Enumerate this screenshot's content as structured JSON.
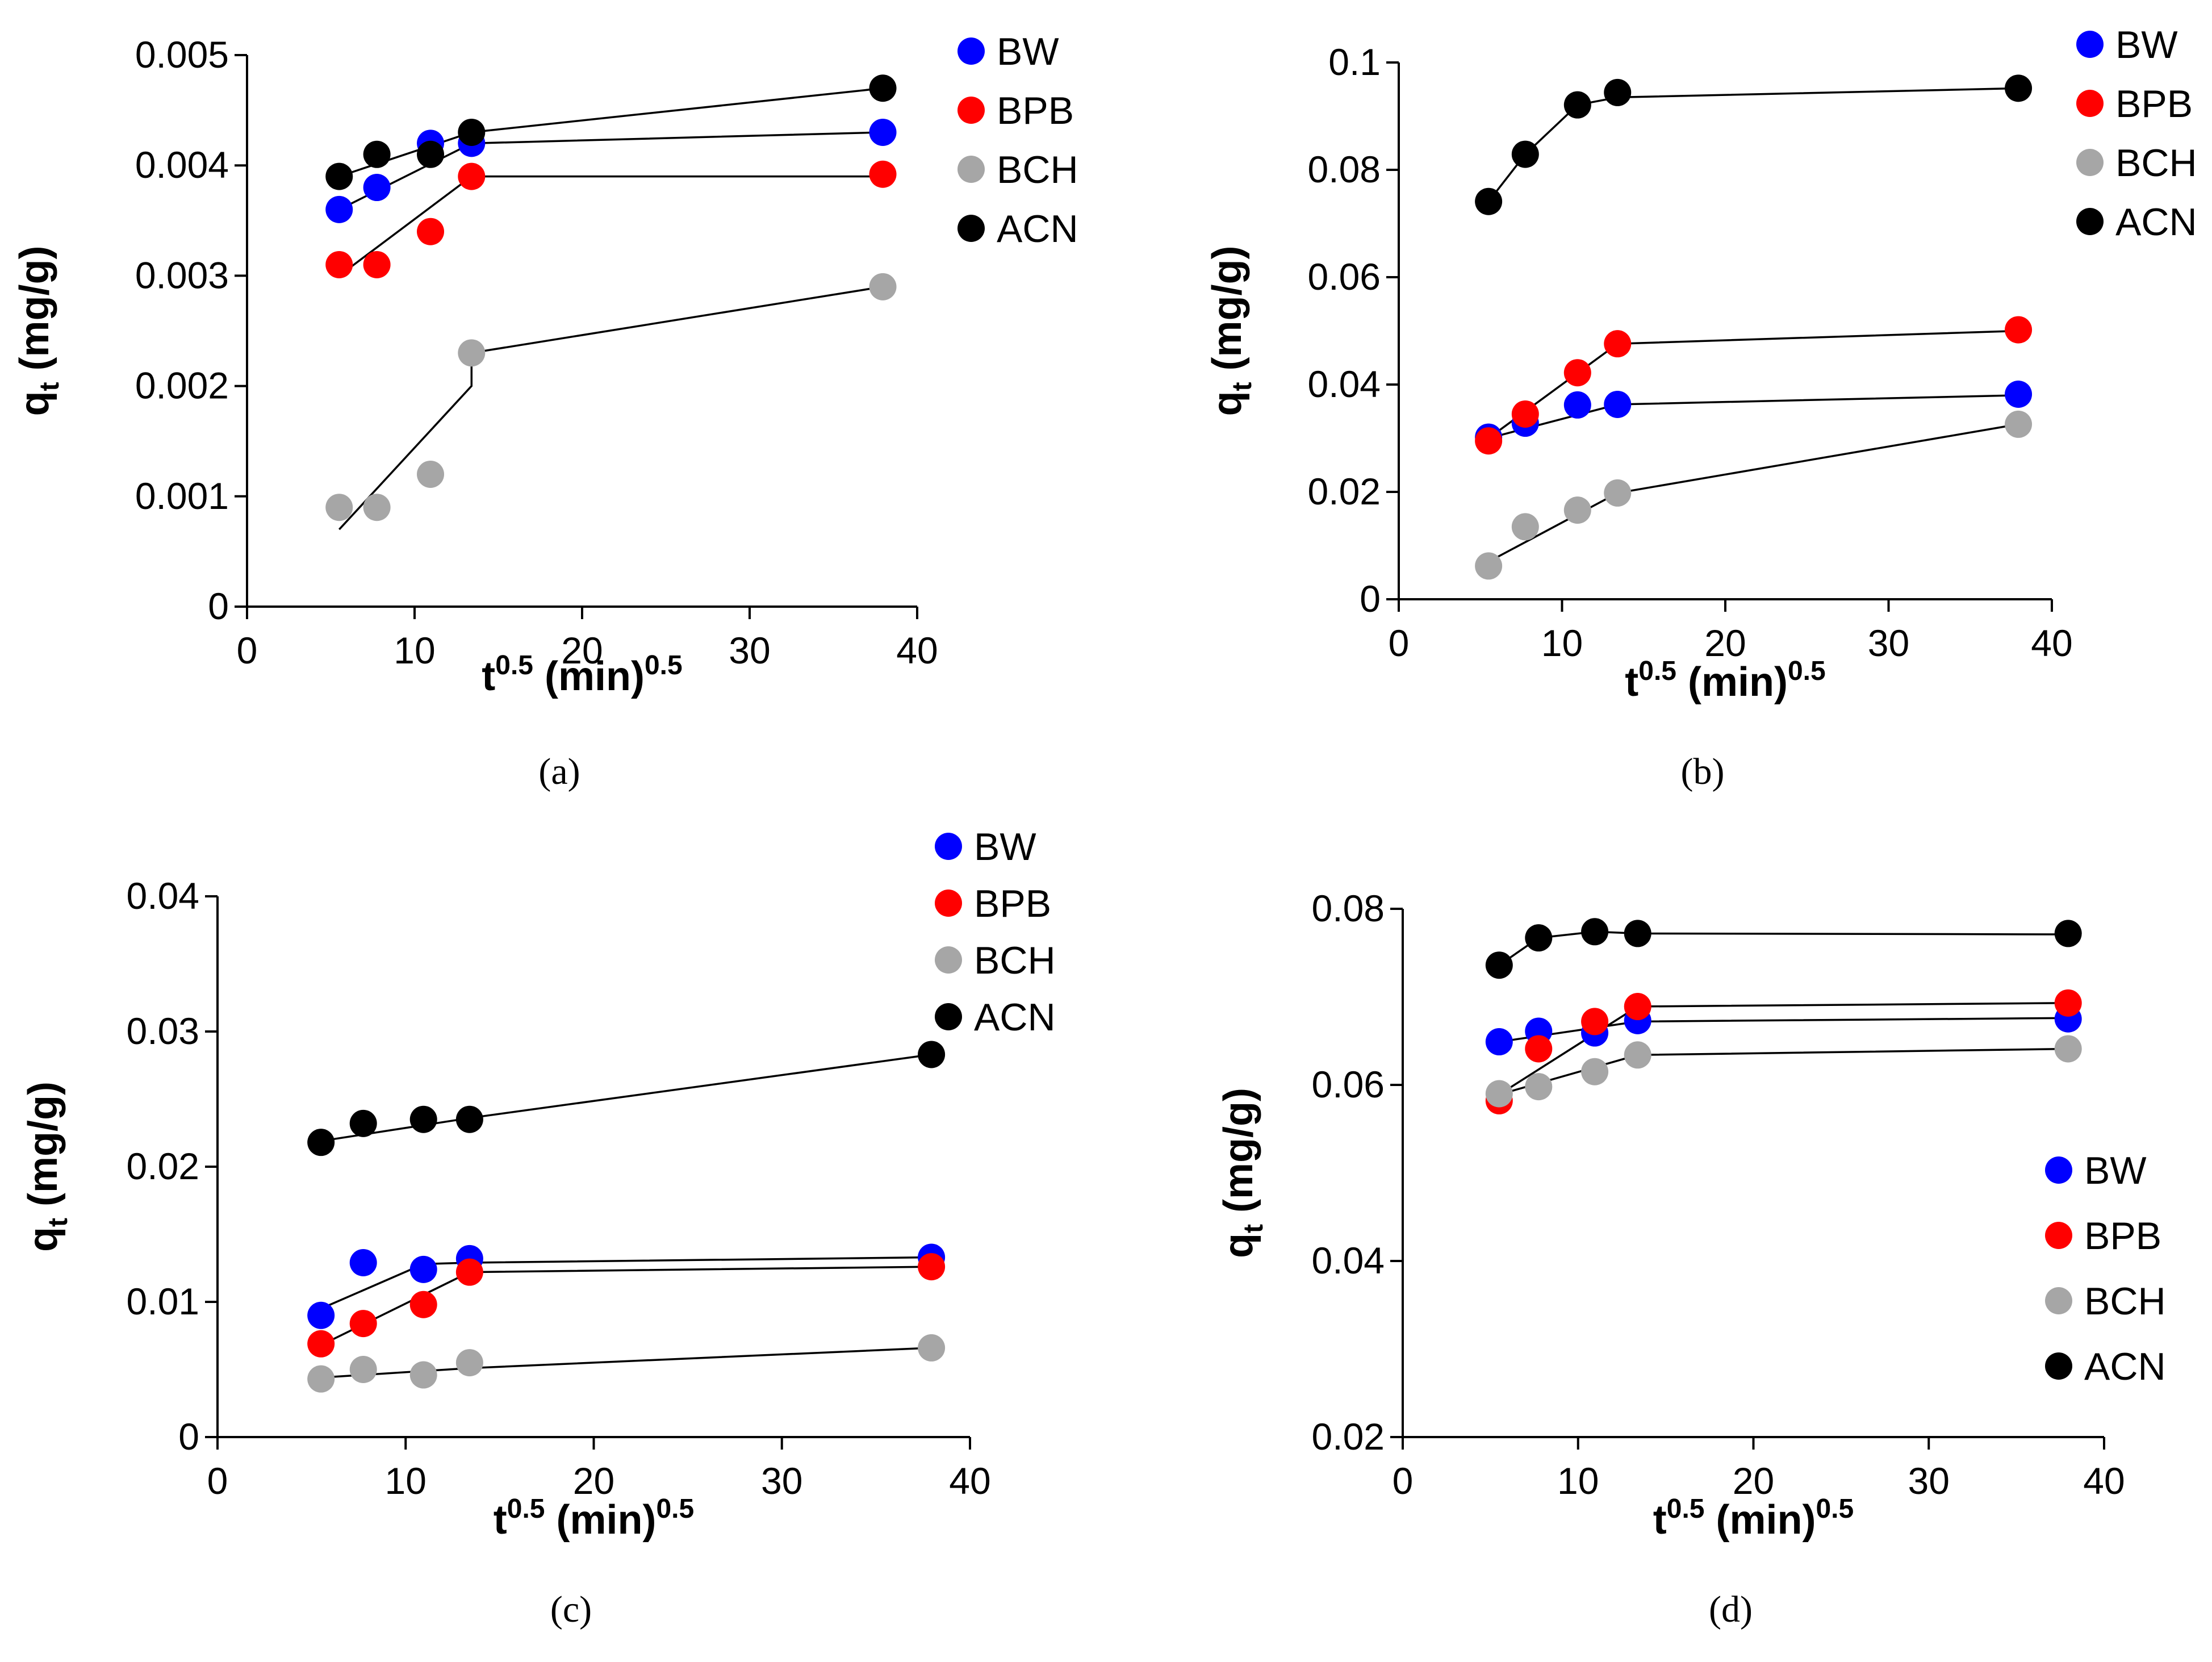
{
  "colors": {
    "BW": "#0000ff",
    "BPB": "#ff0000",
    "BCH": "#a6a6a6",
    "ACN": "#000000",
    "fit_line": "#000000"
  },
  "chart_data": [
    {
      "id": "a",
      "type": "scatter",
      "panel_label": "(a)",
      "xlabel": {
        "base": "t",
        "sup1": "0.5",
        "mid": " (min)",
        "sup2": "0.5"
      },
      "ylabel": {
        "base": "q",
        "sub": "t",
        "rest": " (mg/g)"
      },
      "xlim": [
        0,
        40
      ],
      "xticks": [
        0,
        10,
        20,
        30,
        40
      ],
      "xtick_labels": [
        "0",
        "10",
        "20",
        "30",
        "40"
      ],
      "ylim": [
        0,
        0.005
      ],
      "yticks": [
        0,
        0.001,
        0.002,
        0.003,
        0.004,
        0.005
      ],
      "ytick_labels": [
        "0",
        "0.001",
        "0.002",
        "0.003",
        "0.004",
        "0.005"
      ],
      "legend_position": "top-right",
      "x": [
        5.5,
        7.75,
        10.95,
        13.4,
        37.95
      ],
      "series": [
        {
          "name": "BW",
          "values": [
            0.0036,
            0.0038,
            0.0042,
            0.0042,
            0.0043
          ],
          "fit": [
            [
              5.5,
              0.0036
            ],
            [
              13.4,
              0.0042
            ],
            [
              37.95,
              0.0043
            ]
          ]
        },
        {
          "name": "BPB",
          "values": [
            0.0031,
            0.0031,
            0.0034,
            0.0039,
            0.00392
          ],
          "fit": [
            [
              5.5,
              0.003
            ],
            [
              13.4,
              0.0039
            ],
            [
              37.95,
              0.0039
            ]
          ]
        },
        {
          "name": "BCH",
          "values": [
            0.0009,
            0.0009,
            0.0012,
            0.0023,
            0.0029
          ],
          "fit": [
            [
              5.5,
              0.0007
            ],
            [
              13.4,
              0.002
            ],
            [
              13.4,
              0.0023
            ],
            [
              37.95,
              0.0029
            ]
          ]
        },
        {
          "name": "ACN",
          "values": [
            0.0039,
            0.0041,
            0.0041,
            0.0043,
            0.0047
          ],
          "fit": [
            [
              5.5,
              0.0039
            ],
            [
              13.4,
              0.0043
            ],
            [
              37.95,
              0.0047
            ]
          ]
        }
      ]
    },
    {
      "id": "b",
      "type": "scatter",
      "panel_label": "(b)",
      "xlabel": {
        "base": "t",
        "sup1": "0.5",
        "mid": " (min)",
        "sup2": "0.5"
      },
      "ylabel": {
        "base": "q",
        "sub": "t",
        "rest": " (mg/g)"
      },
      "xlim": [
        0,
        40
      ],
      "xticks": [
        0,
        10,
        20,
        30,
        40
      ],
      "xtick_labels": [
        "0",
        "10",
        "20",
        "30",
        "40"
      ],
      "ylim": [
        0,
        0.1
      ],
      "yticks": [
        0,
        0.02,
        0.04,
        0.06,
        0.08,
        0.1
      ],
      "ytick_labels": [
        "0",
        "0.02",
        "0.04",
        "0.06",
        "0.08",
        "0.1"
      ],
      "legend_position": "top-right",
      "x": [
        5.5,
        7.75,
        10.95,
        13.4,
        37.95
      ],
      "series": [
        {
          "name": "BW",
          "values": [
            0.0302,
            0.0328,
            0.0362,
            0.0363,
            0.0382
          ],
          "fit": [
            [
              5.5,
              0.03
            ],
            [
              13.4,
              0.0363
            ],
            [
              37.95,
              0.038
            ]
          ]
        },
        {
          "name": "BPB",
          "values": [
            0.0295,
            0.0345,
            0.0422,
            0.0476,
            0.0502
          ],
          "fit": [
            [
              5.5,
              0.03
            ],
            [
              13.4,
              0.0476
            ],
            [
              37.95,
              0.05
            ]
          ]
        },
        {
          "name": "BCH",
          "values": [
            0.0062,
            0.0135,
            0.0166,
            0.0198,
            0.0326
          ],
          "fit": [
            [
              5.5,
              0.007
            ],
            [
              13.4,
              0.0198
            ],
            [
              37.95,
              0.0326
            ]
          ]
        },
        {
          "name": "ACN",
          "values": [
            0.0741,
            0.0829,
            0.0921,
            0.0944,
            0.0952
          ],
          "fit": [
            [
              5.5,
              0.0741
            ],
            [
              7.75,
              0.0829
            ],
            [
              10.95,
              0.0921
            ],
            [
              13.4,
              0.0935
            ],
            [
              37.95,
              0.0952
            ]
          ]
        }
      ]
    },
    {
      "id": "c",
      "type": "scatter",
      "panel_label": "(c)",
      "xlabel": {
        "base": "t",
        "sup1": "0.5",
        "mid": " (min)",
        "sup2": "0.5"
      },
      "ylabel": {
        "base": "q",
        "sub": "t",
        "rest": " (mg/g)"
      },
      "xlim": [
        0,
        40
      ],
      "xticks": [
        0,
        10,
        20,
        30,
        40
      ],
      "xtick_labels": [
        "0",
        "10",
        "20",
        "30",
        "40"
      ],
      "ylim": [
        0,
        0.04
      ],
      "yticks": [
        0,
        0.01,
        0.02,
        0.03,
        0.04
      ],
      "ytick_labels": [
        "0",
        "0.01",
        "0.02",
        "0.03",
        "0.04"
      ],
      "legend_position": "top-right",
      "x": [
        5.5,
        7.75,
        10.95,
        13.4,
        37.95
      ],
      "series": [
        {
          "name": "BW",
          "values": [
            0.009,
            0.0129,
            0.0124,
            0.0132,
            0.0133
          ],
          "fit": [
            [
              5.5,
              0.0095
            ],
            [
              10.95,
              0.0128
            ],
            [
              13.4,
              0.0129
            ],
            [
              37.95,
              0.0133
            ]
          ]
        },
        {
          "name": "BPB",
          "values": [
            0.0069,
            0.0084,
            0.0098,
            0.0122,
            0.0126
          ],
          "fit": [
            [
              5.5,
              0.0068
            ],
            [
              13.4,
              0.0122
            ],
            [
              37.95,
              0.0126
            ]
          ]
        },
        {
          "name": "BCH",
          "values": [
            0.0043,
            0.005,
            0.0046,
            0.0055,
            0.0066
          ],
          "fit": [
            [
              5.5,
              0.0044
            ],
            [
              13.4,
              0.0051
            ],
            [
              37.95,
              0.0066
            ]
          ]
        },
        {
          "name": "ACN",
          "values": [
            0.0218,
            0.0232,
            0.0235,
            0.0235,
            0.0283
          ],
          "fit": [
            [
              5.5,
              0.0219
            ],
            [
              13.4,
              0.0236
            ],
            [
              37.95,
              0.0283
            ]
          ]
        }
      ]
    },
    {
      "id": "d",
      "type": "scatter",
      "panel_label": "(d)",
      "xlabel": {
        "base": "t",
        "sup1": "0.5",
        "mid": " (min)",
        "sup2": "0.5"
      },
      "ylabel": {
        "base": "q",
        "sub": "t",
        "rest": " (mg/g)"
      },
      "xlim": [
        0,
        40
      ],
      "xticks": [
        0,
        10,
        20,
        30,
        40
      ],
      "xtick_labels": [
        "0",
        "10",
        "20",
        "30",
        "40"
      ],
      "ylim": [
        0.02,
        0.08
      ],
      "yticks": [
        0.02,
        0.04,
        0.06,
        0.08
      ],
      "ytick_labels": [
        "0.02",
        "0.04",
        "0.06",
        "0.08"
      ],
      "legend_position": "middle-right",
      "x": [
        5.5,
        7.75,
        10.95,
        13.4,
        37.95
      ],
      "series": [
        {
          "name": "BW",
          "values": [
            0.0649,
            0.0661,
            0.0659,
            0.0673,
            0.0675
          ],
          "fit": [
            [
              5.5,
              0.0649
            ],
            [
              13.4,
              0.0672
            ],
            [
              37.95,
              0.0676
            ]
          ]
        },
        {
          "name": "BPB",
          "values": [
            0.0582,
            0.0641,
            0.0672,
            0.0689,
            0.0693
          ],
          "fit": [
            [
              5.5,
              0.0589
            ],
            [
              13.4,
              0.0689
            ],
            [
              37.95,
              0.0693
            ]
          ]
        },
        {
          "name": "BCH",
          "values": [
            0.059,
            0.0598,
            0.0615,
            0.0634,
            0.0641
          ],
          "fit": [
            [
              5.5,
              0.0589
            ],
            [
              13.4,
              0.0634
            ],
            [
              37.95,
              0.0641
            ]
          ]
        },
        {
          "name": "ACN",
          "values": [
            0.0736,
            0.0767,
            0.0774,
            0.0772,
            0.0772
          ],
          "fit": [
            [
              5.5,
              0.0736
            ],
            [
              7.75,
              0.0767
            ],
            [
              10.95,
              0.0774
            ],
            [
              13.4,
              0.0772
            ],
            [
              37.95,
              0.0771
            ]
          ]
        }
      ]
    }
  ]
}
